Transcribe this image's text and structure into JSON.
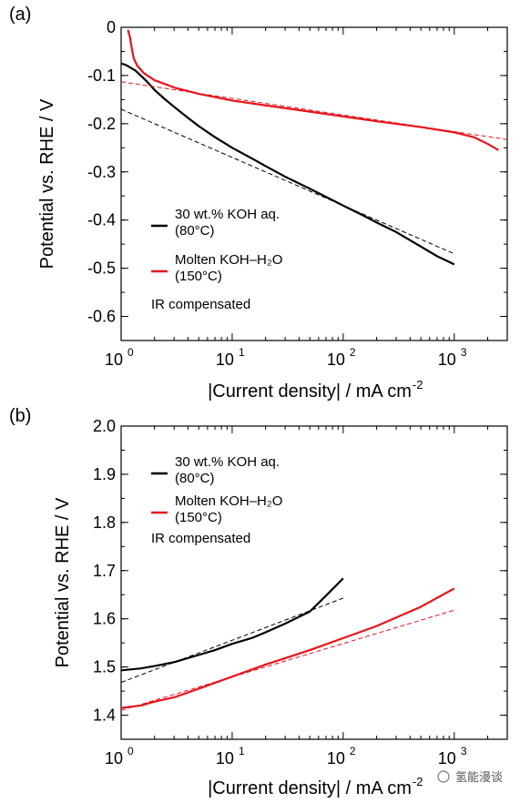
{
  "watermark": {
    "text": "氢能漫谈"
  },
  "chart_data": [
    {
      "panel_label": "(a)",
      "type": "line",
      "x_scale": "log",
      "xlim": [
        1,
        3000
      ],
      "ylim": [
        -0.65,
        0
      ],
      "x_ticks": [
        {
          "value": 1,
          "base": "10",
          "exp": "0"
        },
        {
          "value": 10,
          "base": "10",
          "exp": "1"
        },
        {
          "value": 100,
          "base": "10",
          "exp": "2"
        },
        {
          "value": 1000,
          "base": "10",
          "exp": "3"
        }
      ],
      "y_ticks": [
        {
          "value": 0,
          "label": "0"
        },
        {
          "value": -0.1,
          "label": "-0.1"
        },
        {
          "value": -0.2,
          "label": "-0.2"
        },
        {
          "value": -0.3,
          "label": "-0.3"
        },
        {
          "value": -0.4,
          "label": "-0.4"
        },
        {
          "value": -0.5,
          "label": "-0.5"
        },
        {
          "value": -0.6,
          "label": "-0.6"
        }
      ],
      "xlabel": "|Current density| / mA cm",
      "xlabel_sup": "-2",
      "ylabel": "Potential vs. RHE / V",
      "note": "IR compensated",
      "legend": [
        {
          "line1": "30 wt.% KOH aq.",
          "line2": "(80°C)",
          "color": "#000000"
        },
        {
          "line1": "Molten KOH–H₂O",
          "line2": "(150°C)",
          "color": "#e8141b"
        }
      ],
      "series": [
        {
          "color": "#000000",
          "points": [
            [
              1.0,
              -0.075
            ],
            [
              1.1,
              -0.078
            ],
            [
              1.2,
              -0.083
            ],
            [
              1.35,
              -0.09
            ],
            [
              1.5,
              -0.1
            ],
            [
              1.7,
              -0.112
            ],
            [
              2.0,
              -0.13
            ],
            [
              2.5,
              -0.15
            ],
            [
              3,
              -0.165
            ],
            [
              4,
              -0.188
            ],
            [
              5,
              -0.205
            ],
            [
              7,
              -0.228
            ],
            [
              10,
              -0.25
            ],
            [
              15,
              -0.272
            ],
            [
              20,
              -0.288
            ],
            [
              30,
              -0.31
            ],
            [
              50,
              -0.335
            ],
            [
              70,
              -0.352
            ],
            [
              100,
              -0.37
            ],
            [
              150,
              -0.39
            ],
            [
              200,
              -0.405
            ],
            [
              300,
              -0.425
            ],
            [
              500,
              -0.455
            ],
            [
              700,
              -0.475
            ],
            [
              1000,
              -0.492
            ]
          ]
        },
        {
          "color": "#e8141b",
          "points": [
            [
              1.15,
              -0.005
            ],
            [
              1.2,
              -0.02
            ],
            [
              1.25,
              -0.045
            ],
            [
              1.3,
              -0.065
            ],
            [
              1.4,
              -0.08
            ],
            [
              1.6,
              -0.095
            ],
            [
              2.0,
              -0.11
            ],
            [
              2.5,
              -0.118
            ],
            [
              3,
              -0.125
            ],
            [
              5,
              -0.138
            ],
            [
              10,
              -0.152
            ],
            [
              20,
              -0.162
            ],
            [
              50,
              -0.175
            ],
            [
              100,
              -0.185
            ],
            [
              200,
              -0.195
            ],
            [
              500,
              -0.207
            ],
            [
              1000,
              -0.218
            ],
            [
              1500,
              -0.228
            ],
            [
              2000,
              -0.242
            ],
            [
              2500,
              -0.255
            ]
          ]
        },
        {
          "color": "#000000",
          "dashed": true,
          "points": [
            [
              1.0,
              -0.17
            ],
            [
              1000,
              -0.47
            ]
          ]
        },
        {
          "color": "#e8141b",
          "dashed": true,
          "points": [
            [
              1.0,
              -0.113
            ],
            [
              3000,
              -0.233
            ]
          ]
        }
      ]
    },
    {
      "panel_label": "(b)",
      "type": "line",
      "x_scale": "log",
      "xlim": [
        1,
        3000
      ],
      "ylim": [
        1.35,
        2.0
      ],
      "x_ticks": [
        {
          "value": 1,
          "base": "10",
          "exp": "0"
        },
        {
          "value": 10,
          "base": "10",
          "exp": "1"
        },
        {
          "value": 100,
          "base": "10",
          "exp": "2"
        },
        {
          "value": 1000,
          "base": "10",
          "exp": "3"
        }
      ],
      "y_ticks": [
        {
          "value": 1.4,
          "label": "1.4"
        },
        {
          "value": 1.5,
          "label": "1.5"
        },
        {
          "value": 1.6,
          "label": "1.6"
        },
        {
          "value": 1.7,
          "label": "1.7"
        },
        {
          "value": 1.8,
          "label": "1.8"
        },
        {
          "value": 1.9,
          "label": "1.9"
        },
        {
          "value": 2.0,
          "label": "2.0"
        }
      ],
      "xlabel": "|Current density| / mA cm",
      "xlabel_sup": "-2",
      "ylabel": "Potential vs. RHE / V",
      "note": "IR compensated",
      "legend": [
        {
          "line1": "30 wt.% KOH aq.",
          "line2": "(80°C)",
          "color": "#000000"
        },
        {
          "line1": "Molten KOH–H₂O",
          "line2": "(150°C)",
          "color": "#e8141b"
        }
      ],
      "series": [
        {
          "color": "#000000",
          "points": [
            [
              1.0,
              1.493
            ],
            [
              1.5,
              1.497
            ],
            [
              2,
              1.502
            ],
            [
              3,
              1.51
            ],
            [
              5,
              1.525
            ],
            [
              7,
              1.535
            ],
            [
              10,
              1.548
            ],
            [
              15,
              1.56
            ],
            [
              20,
              1.572
            ],
            [
              30,
              1.59
            ],
            [
              50,
              1.615
            ],
            [
              70,
              1.648
            ],
            [
              100,
              1.684
            ]
          ]
        },
        {
          "color": "#e8141b",
          "points": [
            [
              1.0,
              1.415
            ],
            [
              1.5,
              1.42
            ],
            [
              2,
              1.428
            ],
            [
              3,
              1.437
            ],
            [
              5,
              1.455
            ],
            [
              10,
              1.48
            ],
            [
              20,
              1.505
            ],
            [
              50,
              1.535
            ],
            [
              100,
              1.56
            ],
            [
              200,
              1.585
            ],
            [
              500,
              1.625
            ],
            [
              1000,
              1.663
            ]
          ]
        },
        {
          "color": "#000000",
          "dashed": true,
          "points": [
            [
              1.0,
              1.468
            ],
            [
              100,
              1.643
            ]
          ]
        },
        {
          "color": "#e8141b",
          "dashed": true,
          "points": [
            [
              1.0,
              1.41
            ],
            [
              1000,
              1.618
            ]
          ]
        }
      ]
    }
  ]
}
